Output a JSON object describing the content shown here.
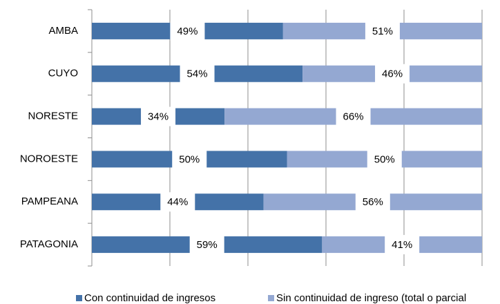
{
  "chart_data": {
    "type": "bar",
    "orientation": "horizontal",
    "stacked": true,
    "categories": [
      "AMBA",
      "CUYO",
      "NORESTE",
      "NOROESTE",
      "PAMPEANA",
      "PATAGONIA"
    ],
    "series": [
      {
        "name": "Con continuidad de ingresos",
        "color": "#4472a8",
        "values": [
          49,
          54,
          34,
          50,
          44,
          59
        ],
        "value_labels": [
          "49%",
          "54%",
          "34%",
          "50%",
          "44%",
          "59%"
        ]
      },
      {
        "name": "Sin continuidad de ingreso (total o parcial",
        "color": "#94a8d2",
        "values": [
          51,
          46,
          66,
          50,
          56,
          41
        ],
        "value_labels": [
          "51%",
          "46%",
          "66%",
          "50%",
          "56%",
          "41%"
        ]
      }
    ],
    "xlim": [
      0,
      100
    ],
    "xticks": [
      0,
      20,
      40,
      60,
      80,
      100
    ],
    "grid": true,
    "legend": "bottom"
  }
}
